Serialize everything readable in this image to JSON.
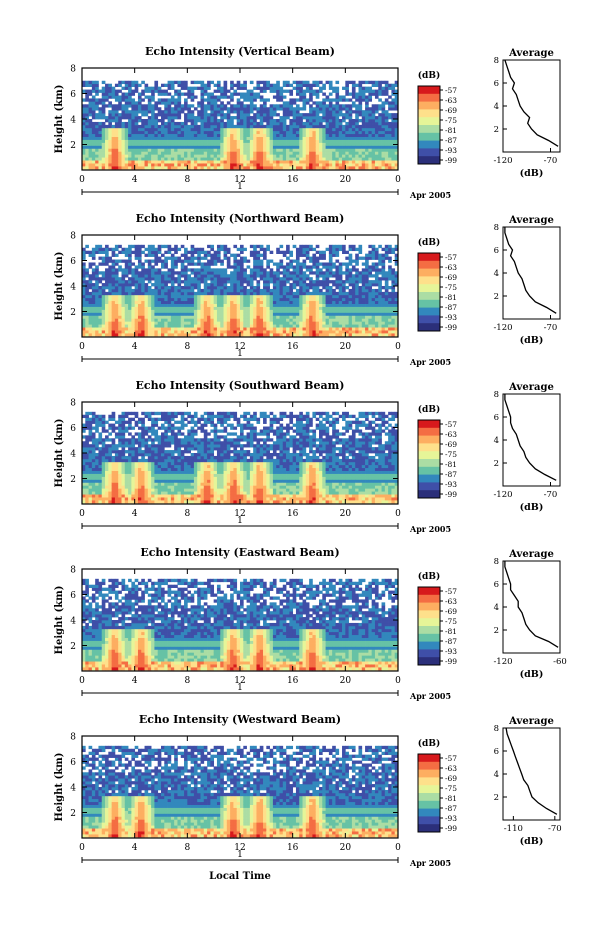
{
  "figure": {
    "xlabel": "Local Time",
    "cbar_unit": "(dB)",
    "avg_title": "Average",
    "avg_xlabel": "(dB)",
    "date_label": "Apr 2005",
    "day_label": "1"
  },
  "chart_data": [
    {
      "type": "heatmap",
      "title": "Echo Intensity (Vertical Beam)",
      "xlabel": "",
      "ylabel": "Height (km)",
      "xlim": [
        0,
        24
      ],
      "ylim": [
        0,
        8
      ],
      "xticks": [
        "0",
        "4",
        "8",
        "12",
        "16",
        "20",
        "0"
      ],
      "yticks": [
        "2",
        "4",
        "6",
        "8"
      ],
      "colorbar": {
        "ticks": [
          "-57",
          "-63",
          "-69",
          "-75",
          "-81",
          "-87",
          "-93",
          "-99"
        ],
        "colors": [
          "#d7191c",
          "#f46d43",
          "#fdae61",
          "#fee08b",
          "#e6f598",
          "#abdda4",
          "#66c2a5",
          "#3288bd",
          "#3f4fa8",
          "#2b2f7a"
        ]
      },
      "bright_hours": [
        2.5,
        11.5,
        13.5,
        17.5
      ],
      "top_km": 7.0,
      "average_profile": {
        "xticks": [
          "-120",
          "-70"
        ],
        "xlim": [
          -120,
          -60
        ],
        "height_km": [
          0.5,
          1,
          1.5,
          2,
          2.5,
          3,
          3.5,
          4,
          4.5,
          5,
          5.5,
          6,
          6.5,
          7,
          7.5,
          8
        ],
        "db": [
          -62,
          -72,
          -84,
          -90,
          -94,
          -92,
          -98,
          -102,
          -104,
          -106,
          -110,
          -108,
          -112,
          -114,
          -116,
          -118
        ]
      }
    },
    {
      "type": "heatmap",
      "title": "Echo Intensity (Northward Beam)",
      "xlabel": "",
      "ylabel": "Height (km)",
      "xlim": [
        0,
        24
      ],
      "ylim": [
        0,
        8
      ],
      "xticks": [
        "0",
        "4",
        "8",
        "12",
        "16",
        "20",
        "0"
      ],
      "yticks": [
        "2",
        "4",
        "6",
        "8"
      ],
      "colorbar": {
        "ticks": [
          "-57",
          "-63",
          "-69",
          "-75",
          "-81",
          "-87",
          "-93",
          "-99"
        ],
        "colors": [
          "#d7191c",
          "#f46d43",
          "#fdae61",
          "#fee08b",
          "#e6f598",
          "#abdda4",
          "#66c2a5",
          "#3288bd",
          "#3f4fa8",
          "#2b2f7a"
        ]
      },
      "bright_hours": [
        2.5,
        4.5,
        9.5,
        11.5,
        13.5,
        17.5
      ],
      "top_km": 7.4,
      "average_profile": {
        "xticks": [
          "-120",
          "-70"
        ],
        "xlim": [
          -120,
          -60
        ],
        "height_km": [
          0.5,
          1,
          1.5,
          2,
          2.5,
          3,
          3.5,
          4,
          4.5,
          5,
          5.5,
          6,
          6.5,
          7,
          7.5,
          8
        ],
        "db": [
          -64,
          -74,
          -86,
          -92,
          -96,
          -98,
          -100,
          -104,
          -106,
          -108,
          -112,
          -110,
          -114,
          -116,
          -118,
          -118
        ]
      }
    },
    {
      "type": "heatmap",
      "title": "Echo Intensity (Southward Beam)",
      "xlabel": "",
      "ylabel": "Height (km)",
      "xlim": [
        0,
        24
      ],
      "ylim": [
        0,
        8
      ],
      "xticks": [
        "0",
        "4",
        "8",
        "12",
        "16",
        "20",
        "0"
      ],
      "yticks": [
        "2",
        "4",
        "6",
        "8"
      ],
      "colorbar": {
        "ticks": [
          "-57",
          "-63",
          "-69",
          "-75",
          "-81",
          "-87",
          "-93",
          "-99"
        ],
        "colors": [
          "#d7191c",
          "#f46d43",
          "#fdae61",
          "#fee08b",
          "#e6f598",
          "#abdda4",
          "#66c2a5",
          "#3288bd",
          "#3f4fa8",
          "#2b2f7a"
        ]
      },
      "bright_hours": [
        2.5,
        4.5,
        9.5,
        11.5,
        13.5,
        17.5
      ],
      "top_km": 7.4,
      "average_profile": {
        "xticks": [
          "-120",
          "-70"
        ],
        "xlim": [
          -120,
          -60
        ],
        "height_km": [
          0.5,
          1,
          1.5,
          2,
          2.5,
          3,
          3.5,
          4,
          4.5,
          5,
          5.5,
          6,
          6.5,
          7,
          7.5,
          8
        ],
        "db": [
          -64,
          -76,
          -86,
          -92,
          -96,
          -98,
          -102,
          -104,
          -106,
          -110,
          -112,
          -112,
          -114,
          -116,
          -118,
          -118
        ]
      }
    },
    {
      "type": "heatmap",
      "title": "Echo Intensity (Eastward Beam)",
      "xlabel": "",
      "ylabel": "Height (km)",
      "xlim": [
        0,
        24
      ],
      "ylim": [
        0,
        8
      ],
      "xticks": [
        "0",
        "4",
        "8",
        "12",
        "16",
        "20",
        "0"
      ],
      "yticks": [
        "2",
        "4",
        "6",
        "8"
      ],
      "colorbar": {
        "ticks": [
          "-57",
          "-63",
          "-69",
          "-75",
          "-81",
          "-87",
          "-93",
          "-99"
        ],
        "colors": [
          "#d7191c",
          "#f46d43",
          "#fdae61",
          "#fee08b",
          "#e6f598",
          "#abdda4",
          "#66c2a5",
          "#3288bd",
          "#3f4fa8",
          "#2b2f7a"
        ]
      },
      "bright_hours": [
        2.5,
        4.5,
        11.5,
        13.5,
        17.5
      ],
      "top_km": 7.4,
      "average_profile": {
        "xticks": [
          "-120",
          "-60"
        ],
        "xlim": [
          -120,
          -60
        ],
        "height_km": [
          0.5,
          1,
          1.5,
          2,
          2.5,
          3,
          3.5,
          4,
          4.5,
          5,
          5.5,
          6,
          6.5,
          7,
          7.5,
          8
        ],
        "db": [
          -62,
          -72,
          -86,
          -92,
          -96,
          -98,
          -100,
          -104,
          -104,
          -108,
          -112,
          -112,
          -114,
          -116,
          -118,
          -118
        ]
      }
    },
    {
      "type": "heatmap",
      "title": "Echo Intensity (Westward Beam)",
      "xlabel": "Local Time",
      "ylabel": "Height (km)",
      "xlim": [
        0,
        24
      ],
      "ylim": [
        0,
        8
      ],
      "xticks": [
        "0",
        "4",
        "8",
        "12",
        "16",
        "20",
        "0"
      ],
      "yticks": [
        "2",
        "4",
        "6",
        "8"
      ],
      "colorbar": {
        "ticks": [
          "-57",
          "-63",
          "-69",
          "-75",
          "-81",
          "-87",
          "-93",
          "-99"
        ],
        "colors": [
          "#d7191c",
          "#f46d43",
          "#fdae61",
          "#fee08b",
          "#e6f598",
          "#abdda4",
          "#66c2a5",
          "#3288bd",
          "#3f4fa8",
          "#2b2f7a"
        ]
      },
      "bright_hours": [
        2.5,
        4.5,
        11.5,
        13.5,
        17.5
      ],
      "top_km": 7.4,
      "average_profile": {
        "xticks": [
          "-110",
          "-70"
        ],
        "xlim": [
          -120,
          -65
        ],
        "height_km": [
          0.5,
          1,
          1.5,
          2,
          2.5,
          3,
          3.5,
          4,
          4.5,
          5,
          5.5,
          6,
          6.5,
          7,
          7.5,
          8
        ],
        "db": [
          -68,
          -78,
          -86,
          -92,
          -94,
          -96,
          -100,
          -102,
          -104,
          -106,
          -108,
          -110,
          -112,
          -114,
          -116,
          -117
        ]
      }
    }
  ]
}
